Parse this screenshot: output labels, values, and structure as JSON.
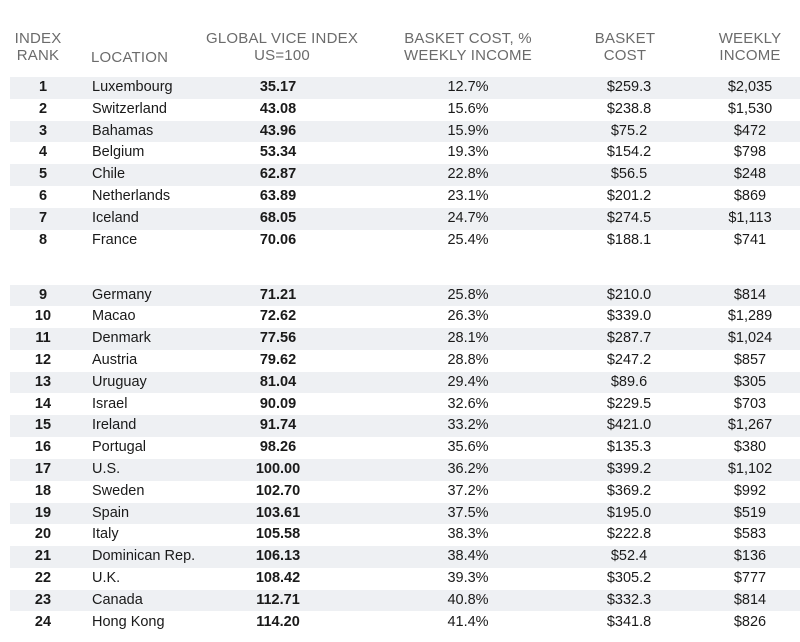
{
  "chart_data": {
    "type": "table",
    "columns": [
      {
        "label_lines": [
          "INDEX",
          "RANK"
        ]
      },
      {
        "label_lines": [
          "LOCATION"
        ]
      },
      {
        "label_lines": [
          "GLOBAL VICE INDEX",
          "US=100"
        ]
      },
      {
        "label_lines": [
          "BASKET COST, %",
          "WEEKLY INCOME"
        ]
      },
      {
        "label_lines": [
          "BASKET",
          "COST"
        ]
      },
      {
        "label_lines": [
          "WEEKLY",
          "INCOME"
        ]
      }
    ],
    "rows": [
      {
        "rank": "1",
        "location": "Luxembourg",
        "vice_index": "35.17",
        "basket_pct": "12.7%",
        "basket_cost": "$259.3",
        "weekly_income": "$2,035"
      },
      {
        "rank": "2",
        "location": "Switzerland",
        "vice_index": "43.08",
        "basket_pct": "15.6%",
        "basket_cost": "$238.8",
        "weekly_income": "$1,530"
      },
      {
        "rank": "3",
        "location": "Bahamas",
        "vice_index": "43.96",
        "basket_pct": "15.9%",
        "basket_cost": "$75.2",
        "weekly_income": "$472"
      },
      {
        "rank": "4",
        "location": "Belgium",
        "vice_index": "53.34",
        "basket_pct": "19.3%",
        "basket_cost": "$154.2",
        "weekly_income": "$798"
      },
      {
        "rank": "5",
        "location": "Chile",
        "vice_index": "62.87",
        "basket_pct": "22.8%",
        "basket_cost": "$56.5",
        "weekly_income": "$248"
      },
      {
        "rank": "6",
        "location": "Netherlands",
        "vice_index": "63.89",
        "basket_pct": "23.1%",
        "basket_cost": "$201.2",
        "weekly_income": "$869"
      },
      {
        "rank": "7",
        "location": "Iceland",
        "vice_index": "68.05",
        "basket_pct": "24.7%",
        "basket_cost": "$274.5",
        "weekly_income": "$1,113"
      },
      {
        "rank": "8",
        "location": "France",
        "vice_index": "70.06",
        "basket_pct": "25.4%",
        "basket_cost": "$188.1",
        "weekly_income": "$741"
      },
      {
        "rank": "9",
        "location": "Germany",
        "vice_index": "71.21",
        "basket_pct": "25.8%",
        "basket_cost": "$210.0",
        "weekly_income": "$814"
      },
      {
        "rank": "10",
        "location": "Macao",
        "vice_index": "72.62",
        "basket_pct": "26.3%",
        "basket_cost": "$339.0",
        "weekly_income": "$1,289"
      },
      {
        "rank": "11",
        "location": "Denmark",
        "vice_index": "77.56",
        "basket_pct": "28.1%",
        "basket_cost": "$287.7",
        "weekly_income": "$1,024"
      },
      {
        "rank": "12",
        "location": "Austria",
        "vice_index": "79.62",
        "basket_pct": "28.8%",
        "basket_cost": "$247.2",
        "weekly_income": "$857"
      },
      {
        "rank": "13",
        "location": "Uruguay",
        "vice_index": "81.04",
        "basket_pct": "29.4%",
        "basket_cost": "$89.6",
        "weekly_income": "$305"
      },
      {
        "rank": "14",
        "location": "Israel",
        "vice_index": "90.09",
        "basket_pct": "32.6%",
        "basket_cost": "$229.5",
        "weekly_income": "$703"
      },
      {
        "rank": "15",
        "location": "Ireland",
        "vice_index": "91.74",
        "basket_pct": "33.2%",
        "basket_cost": "$421.0",
        "weekly_income": "$1,267"
      },
      {
        "rank": "16",
        "location": "Portugal",
        "vice_index": "98.26",
        "basket_pct": "35.6%",
        "basket_cost": "$135.3",
        "weekly_income": "$380"
      },
      {
        "rank": "17",
        "location": "U.S.",
        "vice_index": "100.00",
        "basket_pct": "36.2%",
        "basket_cost": "$399.2",
        "weekly_income": "$1,102"
      },
      {
        "rank": "18",
        "location": "Sweden",
        "vice_index": "102.70",
        "basket_pct": "37.2%",
        "basket_cost": "$369.2",
        "weekly_income": "$992"
      },
      {
        "rank": "19",
        "location": "Spain",
        "vice_index": "103.61",
        "basket_pct": "37.5%",
        "basket_cost": "$195.0",
        "weekly_income": "$519"
      },
      {
        "rank": "20",
        "location": "Italy",
        "vice_index": "105.58",
        "basket_pct": "38.3%",
        "basket_cost": "$222.8",
        "weekly_income": "$583"
      },
      {
        "rank": "21",
        "location": "Dominican Rep.",
        "vice_index": "106.13",
        "basket_pct": "38.4%",
        "basket_cost": "$52.4",
        "weekly_income": "$136"
      },
      {
        "rank": "22",
        "location": "U.K.",
        "vice_index": "108.42",
        "basket_pct": "39.3%",
        "basket_cost": "$305.2",
        "weekly_income": "$777"
      },
      {
        "rank": "23",
        "location": "Canada",
        "vice_index": "112.71",
        "basket_pct": "40.8%",
        "basket_cost": "$332.3",
        "weekly_income": "$814"
      },
      {
        "rank": "24",
        "location": "Hong Kong",
        "vice_index": "114.20",
        "basket_pct": "41.4%",
        "basket_cost": "$341.8",
        "weekly_income": "$826"
      }
    ]
  },
  "colors": {
    "header_text": "#6b6b6b",
    "row_shade": "#eef0f3",
    "body_text": "#1a1a1a"
  }
}
